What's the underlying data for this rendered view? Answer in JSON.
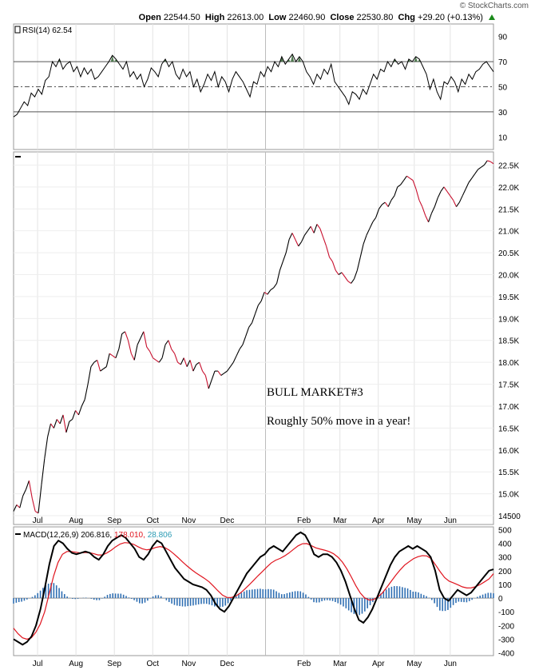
{
  "header": {
    "brand": "© StockCharts.com",
    "open_label": "Open",
    "open": "22544.50",
    "high_label": "High",
    "high": "22613.00",
    "low_label": "Low",
    "low": "22460.90",
    "close_label": "Close",
    "close": "22530.80",
    "chg_label": "Chg",
    "chg": "+29.20 (+0.13%)",
    "up_color": "#1a8a1a"
  },
  "chart_data": [
    {
      "type": "line",
      "name": "rsi",
      "label": "RSI(14) 62.54",
      "ylim": [
        0,
        100
      ],
      "yticks": [
        10,
        30,
        50,
        70,
        90
      ],
      "reference_lines": [
        30,
        50,
        70
      ],
      "values": [
        26,
        28,
        33,
        38,
        35,
        45,
        42,
        48,
        44,
        55,
        58,
        70,
        66,
        72,
        64,
        68,
        70,
        62,
        66,
        58,
        65,
        60,
        64,
        56,
        58,
        62,
        66,
        70,
        75,
        72,
        68,
        64,
        70,
        58,
        62,
        56,
        60,
        50,
        56,
        65,
        62,
        58,
        68,
        72,
        66,
        70,
        60,
        56,
        64,
        58,
        62,
        50,
        56,
        46,
        52,
        60,
        55,
        62,
        50,
        58,
        54,
        46,
        56,
        62,
        58,
        54,
        48,
        42,
        54,
        52,
        62,
        58,
        66,
        62,
        70,
        66,
        74,
        68,
        72,
        76,
        70,
        74,
        70,
        62,
        58,
        52,
        60,
        56,
        64,
        60,
        68,
        54,
        50,
        46,
        42,
        36,
        46,
        44,
        40,
        48,
        44,
        52,
        60,
        56,
        64,
        62,
        70,
        66,
        72,
        68,
        70,
        64,
        72,
        70,
        74,
        72,
        66,
        60,
        48,
        56,
        46,
        40,
        54,
        52,
        58,
        54,
        46,
        56,
        52,
        60,
        56,
        62,
        64,
        68,
        70,
        66,
        62
      ],
      "overbought_fill_color": "#4f7a4f"
    },
    {
      "type": "line",
      "name": "price",
      "ylim": [
        14300,
        22800
      ],
      "yticks": [
        14500,
        15000,
        15500,
        16000,
        16500,
        17000,
        17500,
        18000,
        18500,
        19000,
        19500,
        20000,
        20500,
        21000,
        21500,
        22000,
        22500
      ],
      "ytick_labels": [
        "14500",
        "15.0K",
        "15.5K",
        "16.0K",
        "16.5K",
        "17.0K",
        "17.5K",
        "18.0K",
        "18.5K",
        "19.0K",
        "19.5K",
        "20.0K",
        "20.5K",
        "21.0K",
        "21.5K",
        "22.0K",
        "22.5K"
      ],
      "x_labels": [
        "Jul",
        "Aug",
        "Sep",
        "Oct",
        "Nov",
        "Dec",
        "Feb",
        "Mar",
        "Apr",
        "May",
        "Jun"
      ],
      "x_label_positions": [
        12,
        30,
        50,
        69,
        88,
        107,
        145,
        163,
        182,
        201,
        219
      ],
      "n_points": 235,
      "values": [
        14600,
        14750,
        14680,
        14950,
        15100,
        15300,
        14900,
        14600,
        14560,
        15200,
        15800,
        16300,
        16600,
        16500,
        16700,
        16600,
        16800,
        16400,
        16650,
        16700,
        16900,
        16800,
        17000,
        17150,
        17500,
        17900,
        18000,
        18050,
        17800,
        17850,
        17900,
        18200,
        18150,
        18100,
        18300,
        18650,
        18700,
        18500,
        18200,
        18050,
        18400,
        18550,
        18700,
        18350,
        18250,
        18100,
        18050,
        18000,
        18100,
        18400,
        18500,
        18300,
        18200,
        18000,
        17950,
        18100,
        17900,
        18050,
        17800,
        17950,
        18000,
        17800,
        17700,
        17400,
        17600,
        17800,
        17800,
        17700,
        17750,
        17800,
        17900,
        18000,
        18150,
        18300,
        18400,
        18600,
        18800,
        18900,
        19100,
        19300,
        19400,
        19600,
        19550,
        19650,
        19700,
        19800,
        20100,
        20300,
        20500,
        20800,
        20950,
        20800,
        20650,
        20750,
        20900,
        21000,
        21100,
        20950,
        21150,
        21050,
        20850,
        20650,
        20400,
        20300,
        20100,
        20000,
        20050,
        19950,
        19850,
        19800,
        19900,
        20100,
        20400,
        20700,
        20900,
        21050,
        21200,
        21300,
        21500,
        21600,
        21650,
        21550,
        21700,
        21800,
        22000,
        22050,
        22150,
        22250,
        22200,
        22150,
        21950,
        21700,
        21550,
        21350,
        21200,
        21400,
        21550,
        21750,
        21900,
        22000,
        21900,
        21800,
        21700,
        21550,
        21650,
        21800,
        21950,
        22100,
        22200,
        22300,
        22400,
        22450,
        22500,
        22600,
        22580,
        22530
      ],
      "annotations": [
        "BULL MARKET#3",
        "Roughly 50% move in a year!"
      ],
      "up_color": "#000000",
      "down_color": "#c8102e"
    },
    {
      "type": "line",
      "name": "macd",
      "label": "MACD(12,26,9)",
      "macd_value": "206.816",
      "signal_value": "178.010",
      "hist_value": "28.806",
      "ylim": [
        -420,
        520
      ],
      "yticks": [
        -400,
        -300,
        -200,
        -100,
        0,
        100,
        200,
        300,
        400,
        500
      ],
      "macd": [
        -300,
        -320,
        -340,
        -320,
        -280,
        -200,
        -80,
        80,
        250,
        380,
        420,
        400,
        360,
        330,
        320,
        330,
        340,
        330,
        300,
        280,
        320,
        380,
        420,
        440,
        460,
        440,
        400,
        360,
        300,
        280,
        320,
        380,
        420,
        400,
        340,
        280,
        220,
        180,
        140,
        120,
        100,
        90,
        80,
        60,
        20,
        -40,
        -80,
        -100,
        -60,
        0,
        60,
        120,
        180,
        220,
        260,
        300,
        320,
        360,
        380,
        360,
        340,
        380,
        420,
        460,
        480,
        460,
        400,
        320,
        300,
        320,
        320,
        300,
        260,
        200,
        120,
        20,
        -80,
        -160,
        -180,
        -140,
        -80,
        0,
        80,
        160,
        240,
        300,
        340,
        360,
        380,
        360,
        380,
        360,
        340,
        300,
        200,
        60,
        0,
        -20,
        20,
        60,
        40,
        20,
        40,
        80,
        120,
        160,
        200,
        210
      ],
      "signal": [
        -220,
        -260,
        -290,
        -300,
        -290,
        -250,
        -190,
        -100,
        30,
        160,
        260,
        320,
        340,
        340,
        335,
        330,
        332,
        332,
        325,
        315,
        315,
        330,
        350,
        375,
        395,
        405,
        402,
        393,
        375,
        360,
        352,
        358,
        370,
        376,
        369,
        351,
        325,
        296,
        265,
        236,
        209,
        185,
        164,
        143,
        119,
        87,
        53,
        22,
        5,
        4,
        15,
        36,
        65,
        96,
        129,
        163,
        194,
        227,
        257,
        277,
        290,
        308,
        330,
        356,
        381,
        397,
        398,
        383,
        367,
        358,
        350,
        340,
        324,
        299,
        263,
        214,
        155,
        92,
        38,
        2,
        -14,
        -11,
        8,
        38,
        79,
        123,
        167,
        206,
        241,
        265,
        288,
        302,
        310,
        308,
        287,
        241,
        193,
        150,
        124,
        111,
        97,
        82,
        74,
        75,
        84,
        99,
        119,
        140,
        178
      ],
      "histogram_color": "#2f6fb3",
      "macd_color": "#000000",
      "signal_color": "#e0141e",
      "hist_label_color": "#2a9bb4"
    }
  ]
}
